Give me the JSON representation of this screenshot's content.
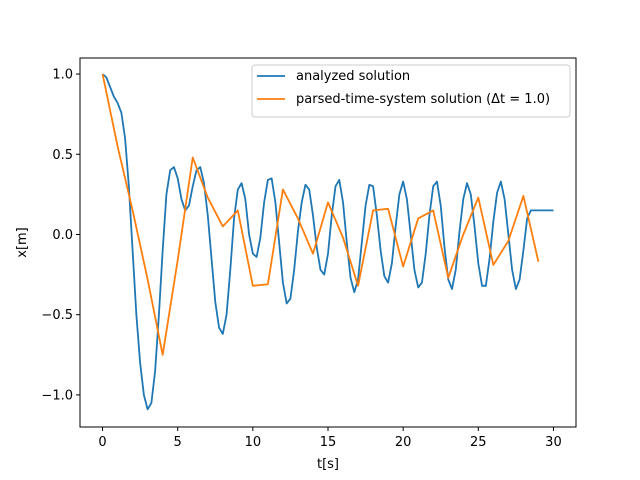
{
  "chart_data": {
    "type": "line",
    "xlabel": "t[s]",
    "ylabel": "x[m]",
    "xlim": [
      -1.5,
      31.5
    ],
    "ylim": [
      -1.2,
      1.1
    ],
    "xticks": [
      0,
      5,
      10,
      15,
      20,
      25,
      30
    ],
    "yticks": [
      -1.0,
      -0.5,
      0.0,
      0.5,
      1.0
    ],
    "xtick_labels": [
      "0",
      "5",
      "10",
      "15",
      "20",
      "25",
      "30"
    ],
    "ytick_labels": [
      "−1.0",
      "−0.5",
      "0.0",
      "0.5",
      "1.0"
    ],
    "grid": false,
    "legend_position": "upper-right",
    "series": [
      {
        "name": "analyzed solution",
        "color": "#1f77b4",
        "x": [
          0.0,
          0.25,
          0.5,
          0.75,
          1.0,
          1.25,
          1.5,
          1.75,
          2.0,
          2.25,
          2.5,
          2.75,
          3.0,
          3.25,
          3.5,
          3.75,
          4.0,
          4.25,
          4.5,
          4.75,
          5.0,
          5.25,
          5.5,
          5.75,
          6.0,
          6.25,
          6.5,
          6.75,
          7.0,
          7.25,
          7.5,
          7.75,
          8.0,
          8.25,
          8.5,
          8.75,
          9.0,
          9.25,
          9.5,
          9.75,
          10.0,
          10.25,
          10.5,
          10.75,
          11.0,
          11.25,
          11.5,
          11.75,
          12.0,
          12.25,
          12.5,
          12.75,
          13.0,
          13.25,
          13.5,
          13.75,
          14.0,
          14.25,
          14.5,
          14.75,
          15.0,
          15.25,
          15.5,
          15.75,
          16.0,
          16.25,
          16.5,
          16.75,
          17.0,
          17.25,
          17.5,
          17.75,
          18.0,
          18.25,
          18.5,
          18.75,
          19.0,
          19.25,
          19.5,
          19.75,
          20.0,
          20.25,
          20.5,
          20.75,
          21.0,
          21.25,
          21.5,
          21.75,
          22.0,
          22.25,
          22.5,
          22.75,
          23.0,
          23.25,
          23.5,
          23.75,
          24.0,
          24.25,
          24.5,
          24.75,
          25.0,
          25.25,
          25.5,
          25.75,
          26.0,
          26.25,
          26.5,
          26.75,
          27.0,
          27.25,
          27.5,
          27.75,
          28.0,
          28.25,
          28.5,
          28.75,
          29.0,
          29.25,
          29.5,
          29.75,
          30.0
        ],
        "y": [
          1.0,
          0.98,
          0.92,
          0.86,
          0.82,
          0.76,
          0.6,
          0.3,
          -0.1,
          -0.5,
          -0.8,
          -1.0,
          -1.09,
          -1.05,
          -0.85,
          -0.5,
          -0.1,
          0.25,
          0.4,
          0.42,
          0.35,
          0.22,
          0.15,
          0.18,
          0.3,
          0.4,
          0.42,
          0.32,
          0.12,
          -0.15,
          -0.42,
          -0.58,
          -0.62,
          -0.5,
          -0.22,
          0.1,
          0.28,
          0.32,
          0.22,
          0.0,
          -0.12,
          -0.14,
          -0.02,
          0.2,
          0.34,
          0.35,
          0.2,
          -0.05,
          -0.3,
          -0.43,
          -0.4,
          -0.22,
          0.02,
          0.2,
          0.31,
          0.28,
          0.12,
          -0.08,
          -0.22,
          -0.25,
          -0.12,
          0.12,
          0.3,
          0.34,
          0.2,
          -0.05,
          -0.27,
          -0.36,
          -0.28,
          -0.05,
          0.18,
          0.31,
          0.3,
          0.12,
          -0.1,
          -0.26,
          -0.3,
          -0.18,
          0.05,
          0.25,
          0.33,
          0.22,
          0.0,
          -0.22,
          -0.33,
          -0.3,
          -0.12,
          0.12,
          0.3,
          0.33,
          0.18,
          -0.08,
          -0.28,
          -0.34,
          -0.22,
          0.02,
          0.22,
          0.32,
          0.25,
          0.05,
          -0.18,
          -0.32,
          -0.32,
          -0.15,
          0.08,
          0.26,
          0.33,
          0.22,
          0.0,
          -0.22,
          -0.34,
          -0.28,
          -0.1,
          0.1,
          0.15,
          0.15,
          0.15,
          0.15,
          0.15,
          0.15,
          0.15
        ]
      },
      {
        "name": "parsed-time-system solution (Δt = 1.0)",
        "color": "#ff7f0e",
        "x": [
          0,
          1,
          2,
          3,
          4,
          5,
          6,
          7,
          8,
          9,
          10,
          11,
          12,
          13,
          14,
          15,
          16,
          17,
          18,
          19,
          20,
          21,
          22,
          23,
          24,
          25,
          26,
          27,
          28,
          29
        ],
        "y": [
          1.0,
          0.55,
          0.15,
          -0.28,
          -0.75,
          -0.16,
          0.48,
          0.23,
          0.05,
          0.15,
          -0.32,
          -0.31,
          0.28,
          0.1,
          -0.12,
          0.2,
          -0.02,
          -0.32,
          0.15,
          0.16,
          -0.2,
          0.1,
          0.15,
          -0.27,
          0.0,
          0.23,
          -0.19,
          -0.04,
          0.24,
          -0.17
        ]
      }
    ]
  }
}
